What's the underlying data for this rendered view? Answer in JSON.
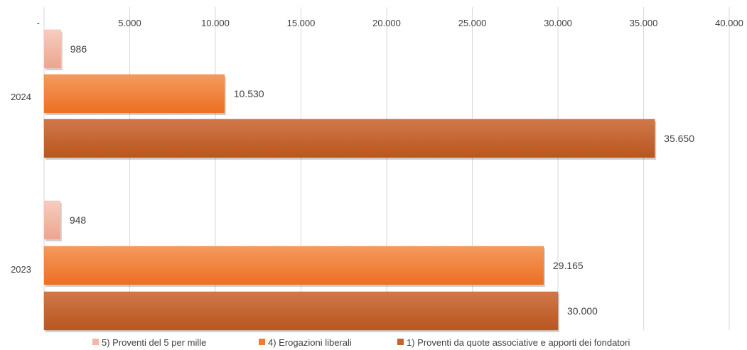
{
  "chart_data": {
    "type": "bar",
    "orientation": "horizontal",
    "categories": [
      "2024",
      "2023"
    ],
    "series": [
      {
        "name": "5) Proventi del 5 per mille",
        "values": [
          986,
          948
        ],
        "labels": [
          "986",
          "948"
        ],
        "color": "#f2b8a6"
      },
      {
        "name": "4) Erogazioni liberali",
        "values": [
          10530,
          29165
        ],
        "labels": [
          "10.530",
          "29.165"
        ],
        "color": "#f07b33"
      },
      {
        "name": "1) Proventi da quote associative e apporti dei fondatori",
        "values": [
          35650,
          30000
        ],
        "labels": [
          "35.650",
          "30.000"
        ],
        "color": "#c8642a"
      }
    ],
    "xlim": [
      0,
      40000
    ],
    "x_ticks": [
      0,
      5000,
      10000,
      15000,
      20000,
      25000,
      30000,
      35000,
      40000
    ],
    "x_tick_labels": [
      "-",
      "5.000",
      "10.000",
      "15.000",
      "20.000",
      "25.000",
      "30.000",
      "35.000",
      "40.000"
    ],
    "axis_position": "top",
    "grid": true,
    "legend_position": "bottom",
    "title": "",
    "xlabel": "",
    "ylabel": ""
  }
}
